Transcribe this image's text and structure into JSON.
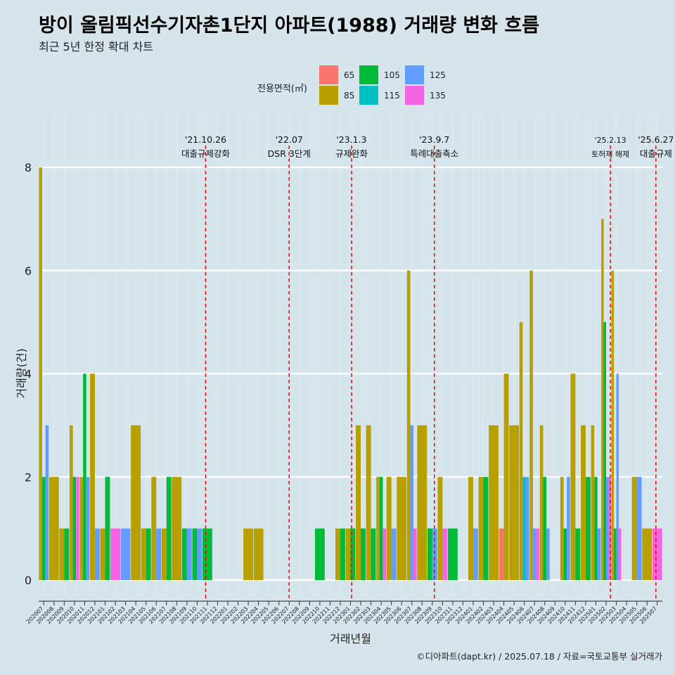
{
  "title": "방이 올림픽선수기자촌1단지 아파트(1988) 거래량 변화 흐름",
  "subtitle": "최근 5년 한정 확대 차트",
  "caption": "©디아파트(dapt.kr) / 2025.07.18 / 자료=국토교통부 실거래가",
  "legend": {
    "title": "전용면적(㎡)",
    "items": [
      {
        "label": "65",
        "color": "#f8766d"
      },
      {
        "label": "85",
        "color": "#b79f00"
      },
      {
        "label": "105",
        "color": "#00ba38"
      },
      {
        "label": "115",
        "color": "#00bfc4"
      },
      {
        "label": "125",
        "color": "#619cff"
      },
      {
        "label": "135",
        "color": "#f564e3"
      }
    ]
  },
  "chart_data": {
    "type": "bar",
    "xlabel": "거래년월",
    "ylabel": "거래량(건)",
    "ylim": [
      0,
      8
    ],
    "yticks": [
      0,
      2,
      4,
      6,
      8
    ],
    "grid": true,
    "categories": [
      "202007",
      "202008",
      "202009",
      "202010",
      "202011",
      "202012",
      "202101",
      "202102",
      "202103",
      "202104",
      "202105",
      "202106",
      "202107",
      "202108",
      "202109",
      "202110",
      "202111",
      "202112",
      "202201",
      "202202",
      "202203",
      "202204",
      "202205",
      "202206",
      "202207",
      "202208",
      "202209",
      "202210",
      "202211",
      "202212",
      "202301",
      "202302",
      "202303",
      "202304",
      "202305",
      "202306",
      "202307",
      "202308",
      "202309",
      "202310",
      "202311",
      "202312",
      "202401",
      "202402",
      "202403",
      "202404",
      "202405",
      "202406",
      "202407",
      "202408",
      "202409",
      "202410",
      "202411",
      "202412",
      "202501",
      "202502",
      "202503",
      "202504",
      "202505",
      "202506",
      "202507"
    ],
    "series": [
      {
        "name": "65",
        "values": [
          0,
          0,
          0,
          0,
          0,
          0,
          0,
          0,
          0,
          0,
          0,
          0,
          0,
          0,
          0,
          0,
          0,
          0,
          0,
          0,
          0,
          0,
          0,
          0,
          0,
          0,
          0,
          0,
          0,
          0,
          0,
          0,
          0,
          0,
          0,
          0,
          0,
          0,
          0,
          0,
          0,
          0,
          0,
          0,
          0,
          1,
          0,
          0,
          0,
          0,
          0,
          0,
          0,
          0,
          0,
          0,
          0,
          0,
          0,
          0,
          0
        ]
      },
      {
        "name": "85",
        "values": [
          8,
          2,
          1,
          3,
          2,
          4,
          1,
          0,
          0,
          3,
          1,
          2,
          1,
          2,
          0,
          0,
          0,
          0,
          0,
          0,
          1,
          1,
          0,
          0,
          0,
          0,
          0,
          0,
          0,
          1,
          1,
          3,
          3,
          2,
          2,
          2,
          6,
          3,
          0,
          2,
          0,
          0,
          2,
          2,
          3,
          4,
          3,
          5,
          6,
          3,
          0,
          2,
          4,
          3,
          3,
          7,
          6,
          0,
          2,
          1,
          0
        ]
      },
      {
        "name": "105",
        "values": [
          2,
          0,
          1,
          2,
          4,
          0,
          2,
          0,
          0,
          0,
          1,
          0,
          2,
          0,
          1,
          1,
          1,
          0,
          0,
          0,
          0,
          0,
          0,
          0,
          0,
          0,
          0,
          1,
          0,
          1,
          1,
          1,
          1,
          2,
          0,
          0,
          0,
          0,
          1,
          0,
          1,
          0,
          0,
          2,
          0,
          0,
          0,
          0,
          0,
          2,
          0,
          1,
          1,
          2,
          2,
          5,
          1,
          0,
          0,
          0,
          0
        ]
      },
      {
        "name": "115",
        "values": [
          0,
          0,
          0,
          0,
          0,
          0,
          0,
          0,
          0,
          0,
          0,
          0,
          0,
          0,
          0,
          0,
          0,
          0,
          0,
          0,
          0,
          0,
          0,
          0,
          0,
          0,
          0,
          0,
          0,
          0,
          0,
          0,
          0,
          0,
          0,
          0,
          0,
          0,
          0,
          0,
          0,
          0,
          0,
          0,
          0,
          0,
          0,
          2,
          0,
          0,
          0,
          0,
          0,
          0,
          0,
          0,
          0,
          0,
          0,
          0,
          0
        ]
      },
      {
        "name": "125",
        "values": [
          3,
          0,
          0,
          0,
          2,
          1,
          0,
          0,
          1,
          0,
          0,
          1,
          0,
          0,
          1,
          1,
          0,
          0,
          0,
          0,
          0,
          0,
          0,
          0,
          0,
          0,
          0,
          0,
          0,
          0,
          0,
          0,
          0,
          0,
          1,
          0,
          3,
          0,
          1,
          0,
          0,
          0,
          1,
          0,
          0,
          0,
          0,
          2,
          1,
          1,
          0,
          2,
          0,
          0,
          1,
          2,
          4,
          0,
          2,
          0,
          0
        ]
      },
      {
        "name": "135",
        "values": [
          0,
          0,
          0,
          2,
          0,
          0,
          0,
          1,
          0,
          0,
          0,
          0,
          0,
          0,
          0,
          0,
          0,
          0,
          0,
          0,
          0,
          0,
          0,
          0,
          0,
          0,
          0,
          0,
          0,
          0,
          0,
          0,
          0,
          1,
          0,
          0,
          1,
          0,
          0,
          1,
          0,
          0,
          0,
          0,
          0,
          0,
          0,
          0,
          1,
          0,
          0,
          0,
          0,
          0,
          0,
          2,
          1,
          0,
          0,
          0,
          1
        ]
      }
    ],
    "annotations": [
      {
        "date": "'21.10.26",
        "label": "대출규제강화",
        "x": 15.83
      },
      {
        "date": "'22.07",
        "label": "DSR 3단계",
        "x": 24
      },
      {
        "date": "'23.1.3",
        "label": "규제완화",
        "x": 30.1
      },
      {
        "date": "'23.9.7",
        "label": "특례대출축소",
        "x": 38.2
      },
      {
        "date": "'25.2.13",
        "label": "토허제 해제",
        "x": 55.42
      },
      {
        "date": "'25.6.27",
        "label": "대출규제",
        "x": 59.87
      }
    ]
  }
}
